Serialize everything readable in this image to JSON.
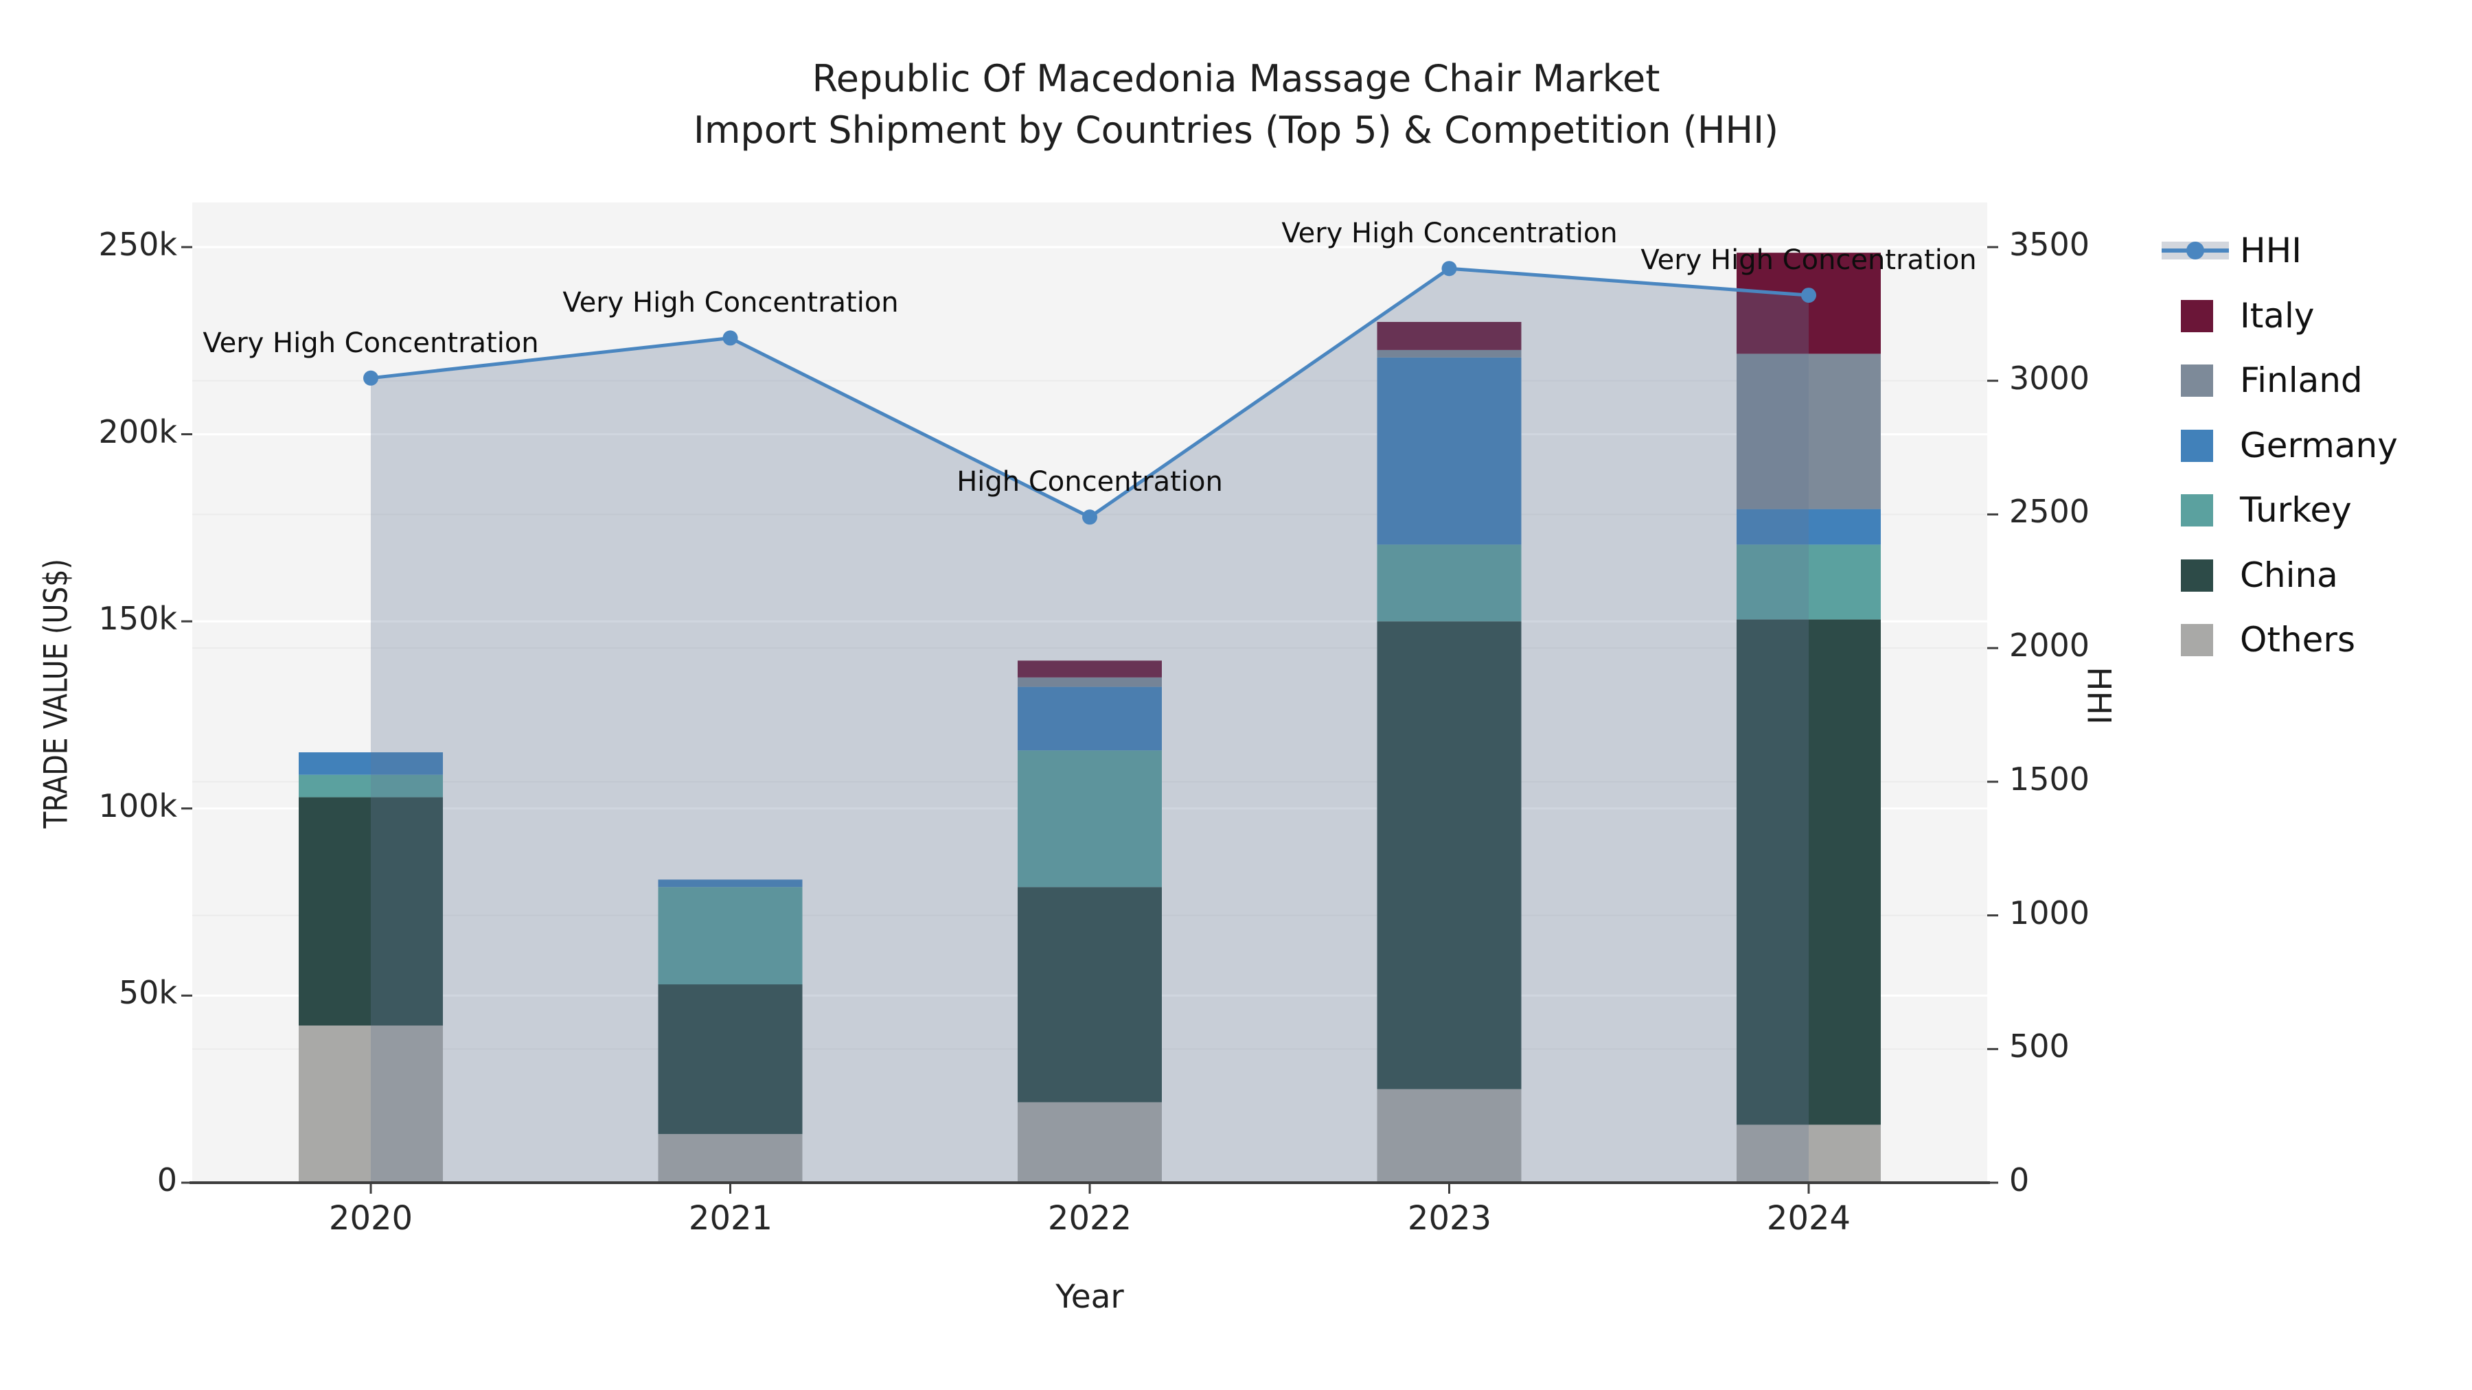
{
  "title": {
    "line1": "Republic Of Macedonia Massage Chair Market",
    "line2": "Import Shipment by Countries (Top 5) & Competition (HHI)"
  },
  "axes": {
    "y_left_label": "TRADE VALUE (US$)",
    "y_right_label": "HHI",
    "x_label": "Year",
    "y_left_ticks": [
      "0",
      "50k",
      "100k",
      "150k",
      "200k",
      "250k"
    ],
    "y_right_ticks": [
      "0",
      "500",
      "1000",
      "1500",
      "2000",
      "2500",
      "3000",
      "3500"
    ],
    "x_ticks": [
      "2020",
      "2021",
      "2022",
      "2023",
      "2024"
    ]
  },
  "legend": {
    "items": [
      {
        "label": "HHI",
        "type": "line",
        "color": "#4a86c0"
      },
      {
        "label": "Italy",
        "type": "swatch",
        "color": "#6b1638"
      },
      {
        "label": "Finland",
        "type": "swatch",
        "color": "#7d8a99"
      },
      {
        "label": "Germany",
        "type": "swatch",
        "color": "#4181ba"
      },
      {
        "label": "Turkey",
        "type": "swatch",
        "color": "#5ba19f"
      },
      {
        "label": "China",
        "type": "swatch",
        "color": "#2d4b48"
      },
      {
        "label": "Others",
        "type": "swatch",
        "color": "#a9a9a7"
      }
    ]
  },
  "colors": {
    "plot_bg": "#f4f4f4",
    "grid_left": "#ffffff",
    "grid_right": "#ebebeb",
    "axis_line": "#3d3d3d",
    "hhi_line": "#4a86c0",
    "hhi_area_fill": "rgba(100,120,150,0.30)"
  },
  "chart_data": {
    "type": "combo: stacked bar (left axis) + line with area fill (right axis)",
    "categories": [
      "2020",
      "2021",
      "2022",
      "2023",
      "2024"
    ],
    "bar_series": [
      {
        "name": "Others",
        "color": "#a9a9a7",
        "values": [
          42000,
          13000,
          21500,
          25000,
          15500
        ]
      },
      {
        "name": "China",
        "color": "#2d4b48",
        "values": [
          61000,
          40000,
          57500,
          125000,
          135000
        ]
      },
      {
        "name": "Turkey",
        "color": "#5ba19f",
        "values": [
          6000,
          26000,
          36500,
          20500,
          20000
        ]
      },
      {
        "name": "Germany",
        "color": "#4181ba",
        "values": [
          6000,
          2000,
          17000,
          50000,
          9500
        ]
      },
      {
        "name": "Finland",
        "color": "#7d8a99",
        "values": [
          0,
          0,
          2500,
          2000,
          41500
        ]
      },
      {
        "name": "Italy",
        "color": "#6b1638",
        "values": [
          0,
          0,
          4500,
          7500,
          27000
        ]
      }
    ],
    "bar_totals": [
      115000,
      81000,
      139500,
      230000,
      248500
    ],
    "line_series": {
      "name": "HHI",
      "color": "#4a86c0",
      "values": [
        3010,
        3160,
        2490,
        3420,
        3320
      ]
    },
    "annotations": [
      "Very High Concentration",
      "Very High Concentration",
      "High Concentration",
      "Very High Concentration",
      "Very High Concentration"
    ],
    "title": "Republic Of Macedonia Massage Chair Market Import Shipment by Countries (Top 5) & Competition (HHI)",
    "xlabel": "Year",
    "ylabel_left": "TRADE VALUE (US$)",
    "ylabel_right": "HHI",
    "ylim_left": [
      0,
      250000
    ],
    "ylim_right": [
      0,
      3500
    ],
    "grid": true,
    "legend_position": "right",
    "stack_order_bottom_to_top": [
      "Others",
      "China",
      "Turkey",
      "Germany",
      "Finland",
      "Italy"
    ]
  }
}
